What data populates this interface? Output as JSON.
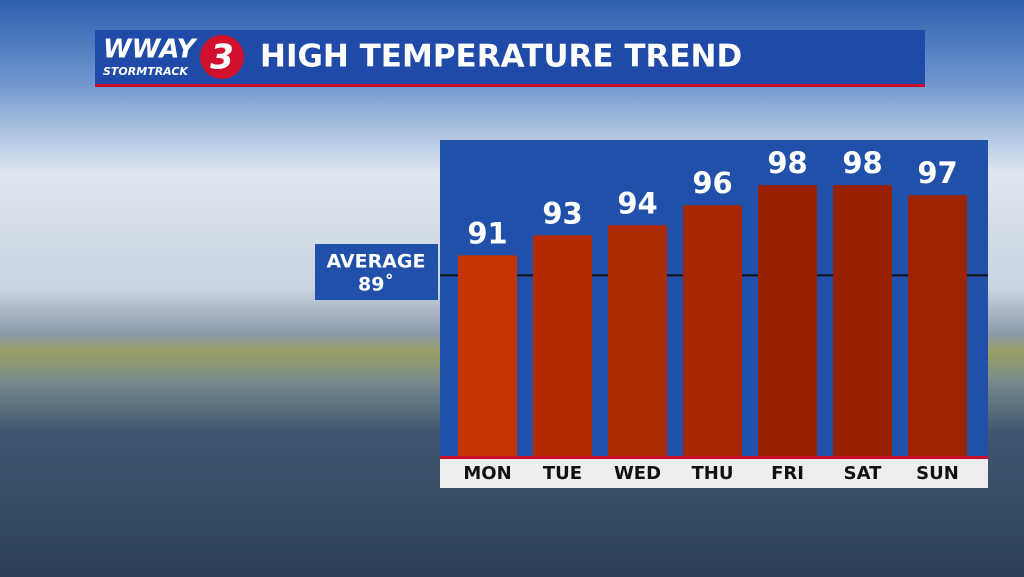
{
  "logo": {
    "name": "WWAY",
    "sub": "STORMTRACK",
    "channel": "3"
  },
  "chart_data": {
    "type": "bar",
    "title": "HIGH TEMPERATURE TREND",
    "categories": [
      "MON",
      "TUE",
      "WED",
      "THU",
      "FRI",
      "SAT",
      "SUN"
    ],
    "values": [
      91,
      93,
      94,
      96,
      98,
      98,
      97
    ],
    "colors": [
      "#c43400",
      "#b42b00",
      "#ae2a00",
      "#a62600",
      "#962200",
      "#962200",
      "#9c2400"
    ],
    "ylim": [
      71,
      102.5
    ],
    "average_line": {
      "label": "AVERAGE",
      "value": 89,
      "value_label": "89˚"
    }
  }
}
